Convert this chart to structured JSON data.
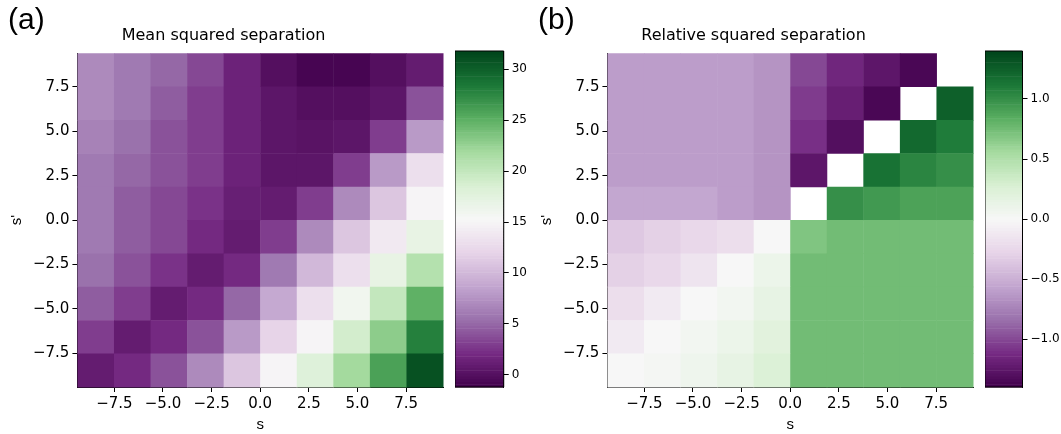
{
  "chart_data": [
    {
      "type": "heatmap",
      "title": "Mean squared separation",
      "xlabel": "s",
      "ylabel": "s'",
      "annotations": [
        "(a)"
      ],
      "xlim": [
        -9.4,
        9.4
      ],
      "ylim": [
        -9.4,
        9.4
      ],
      "xticks": [
        {
          "value": -7.5,
          "label": "−7.5"
        },
        {
          "value": -5,
          "label": "−5.0"
        },
        {
          "value": -2.5,
          "label": "−2.5"
        },
        {
          "value": 0,
          "label": "0.0"
        },
        {
          "value": 2.5,
          "label": "2.5"
        },
        {
          "value": 5,
          "label": "5.0"
        },
        {
          "value": 7.5,
          "label": "7.5"
        }
      ],
      "yticks": [
        {
          "value": -7.5,
          "label": "−7.5"
        },
        {
          "value": -5,
          "label": "−5.0"
        },
        {
          "value": -2.5,
          "label": "−2.5"
        },
        {
          "value": 0,
          "label": "0.0"
        },
        {
          "value": 2.5,
          "label": "2.5"
        },
        {
          "value": 5,
          "label": "5.0"
        },
        {
          "value": 7.5,
          "label": "7.5"
        }
      ],
      "clim": [
        -1.2,
        31.8
      ],
      "cticks": [
        0,
        5,
        10,
        15,
        20,
        25,
        30
      ],
      "cells": [
        [
          7,
          6,
          5,
          3.5,
          1.5,
          0,
          -0.8,
          -0.8,
          0,
          1
        ],
        [
          7,
          6,
          4.5,
          3,
          1.5,
          0.5,
          0,
          0,
          0.5,
          4
        ],
        [
          6.5,
          5.5,
          4,
          3,
          1.5,
          0.5,
          0.3,
          0.5,
          3,
          8
        ],
        [
          6,
          5,
          4,
          3,
          1.5,
          0.5,
          0.5,
          3,
          8,
          13
        ],
        [
          6,
          4.5,
          3.5,
          2.5,
          1.2,
          1,
          3,
          7,
          11,
          15
        ],
        [
          6,
          4.5,
          3.5,
          2,
          1,
          3,
          7,
          11,
          14,
          17
        ],
        [
          5.5,
          4,
          2.5,
          1,
          2,
          6,
          10,
          13,
          17,
          21
        ],
        [
          4.5,
          3,
          1,
          2,
          5,
          9,
          13,
          16,
          20,
          25
        ],
        [
          3,
          1,
          2,
          4,
          8,
          12,
          15,
          19,
          23,
          28
        ],
        [
          1,
          2,
          4,
          7,
          11,
          15,
          18,
          22,
          26,
          31
        ]
      ]
    },
    {
      "type": "heatmap",
      "title": "Relative squared separation",
      "xlabel": "s",
      "ylabel": "s'",
      "annotations": [
        "(b)"
      ],
      "xlim": [
        -9.4,
        9.4
      ],
      "ylim": [
        -9.4,
        9.4
      ],
      "xticks": [
        {
          "value": -7.5,
          "label": "−7.5"
        },
        {
          "value": -5,
          "label": "−5.0"
        },
        {
          "value": -2.5,
          "label": "−2.5"
        },
        {
          "value": 0,
          "label": "0.0"
        },
        {
          "value": 2.5,
          "label": "2.5"
        },
        {
          "value": 5,
          "label": "5.0"
        },
        {
          "value": 7.5,
          "label": "7.5"
        }
      ],
      "yticks": [
        {
          "value": -7.5,
          "label": "−7.5"
        },
        {
          "value": -5,
          "label": "−5.0"
        },
        {
          "value": -2.5,
          "label": "−2.5"
        },
        {
          "value": 0,
          "label": "0.0"
        },
        {
          "value": 2.5,
          "label": "2.5"
        },
        {
          "value": 5,
          "label": "5.0"
        },
        {
          "value": 7.5,
          "label": "7.5"
        }
      ],
      "clim": [
        -1.4,
        1.4
      ],
      "cticks": [
        {
          "value": -1,
          "label": "−1.0"
        },
        {
          "value": -0.5,
          "label": "−0.5"
        },
        {
          "value": 0,
          "label": "0.0"
        },
        {
          "value": 0.5,
          "label": "0.5"
        },
        {
          "value": 1,
          "label": "1.0"
        }
      ],
      "cells": [
        [
          -0.6,
          -0.6,
          -0.6,
          -0.6,
          -0.65,
          -1.0,
          -1.15,
          -1.25,
          -1.35,
          null
        ],
        [
          -0.6,
          -0.6,
          -0.6,
          -0.6,
          -0.65,
          -1.05,
          -1.2,
          -1.35,
          null,
          1.25
        ],
        [
          -0.6,
          -0.6,
          -0.6,
          -0.6,
          -0.65,
          -1.1,
          -1.3,
          null,
          1.2,
          1.1
        ],
        [
          -0.6,
          -0.6,
          -0.6,
          -0.6,
          -0.65,
          -1.25,
          null,
          1.15,
          1.05,
          1.0
        ],
        [
          -0.55,
          -0.55,
          -0.55,
          -0.6,
          -0.65,
          null,
          1.0,
          0.95,
          0.9,
          0.9
        ],
        [
          -0.35,
          -0.3,
          -0.25,
          -0.2,
          0,
          0.7,
          0.75,
          0.75,
          0.75,
          0.75
        ],
        [
          -0.3,
          -0.25,
          -0.15,
          0,
          0.1,
          0.75,
          0.75,
          0.75,
          0.75,
          0.75
        ],
        [
          -0.2,
          -0.1,
          0,
          0.05,
          0.15,
          0.75,
          0.75,
          0.75,
          0.75,
          0.75
        ],
        [
          -0.1,
          0,
          0.05,
          0.1,
          0.2,
          0.75,
          0.75,
          0.75,
          0.75,
          0.75
        ],
        [
          0,
          0.03,
          0.08,
          0.15,
          0.25,
          0.75,
          0.75,
          0.75,
          0.75,
          0.75
        ]
      ]
    }
  ]
}
